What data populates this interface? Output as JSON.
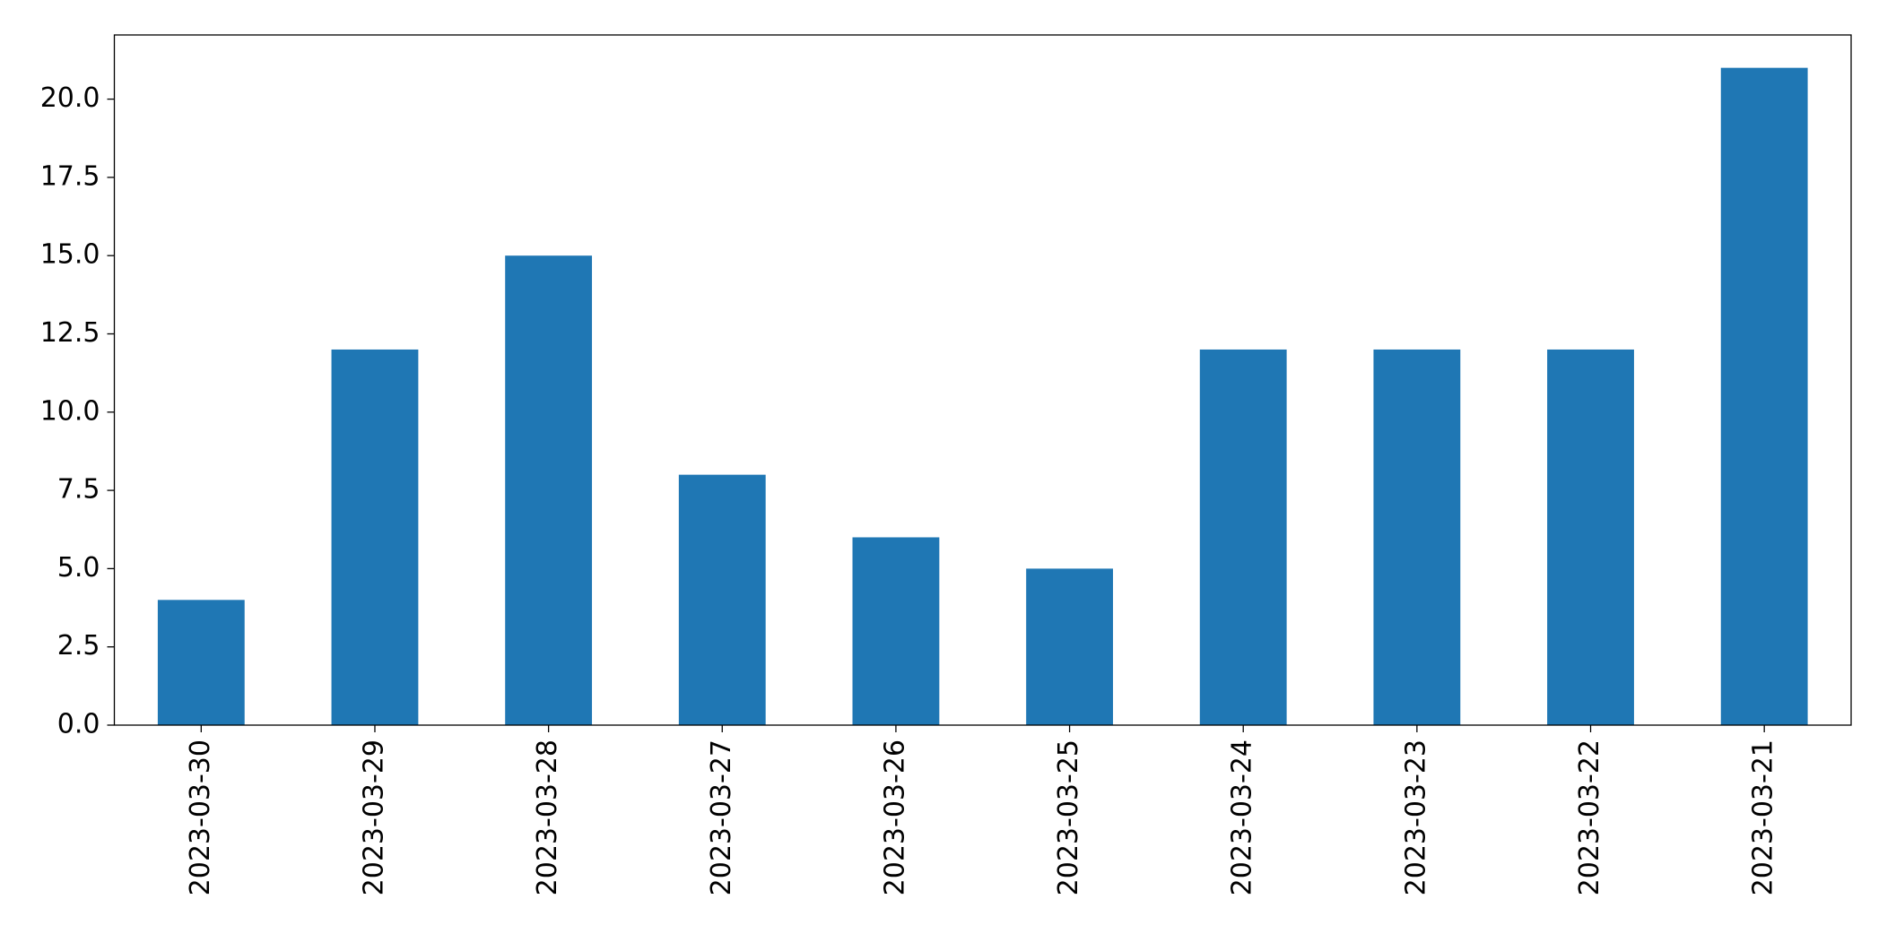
{
  "chart_data": {
    "type": "bar",
    "categories": [
      "2023-03-30",
      "2023-03-29",
      "2023-03-28",
      "2023-03-27",
      "2023-03-26",
      "2023-03-25",
      "2023-03-24",
      "2023-03-23",
      "2023-03-22",
      "2023-03-21"
    ],
    "values": [
      4,
      12,
      15,
      8,
      6,
      5,
      12,
      12,
      12,
      21
    ],
    "color": "#1f77b4",
    "ylim": [
      0,
      22.05
    ],
    "yticks": [
      {
        "value": 0,
        "label": "0.0"
      },
      2.5,
      {
        "value": 5,
        "label": "5.0"
      },
      7.5,
      {
        "value": 10,
        "label": "10.0"
      },
      12.5,
      {
        "value": 15,
        "label": "15.0"
      },
      17.5,
      {
        "value": 20,
        "label": "20.0"
      }
    ],
    "grid": false
  }
}
